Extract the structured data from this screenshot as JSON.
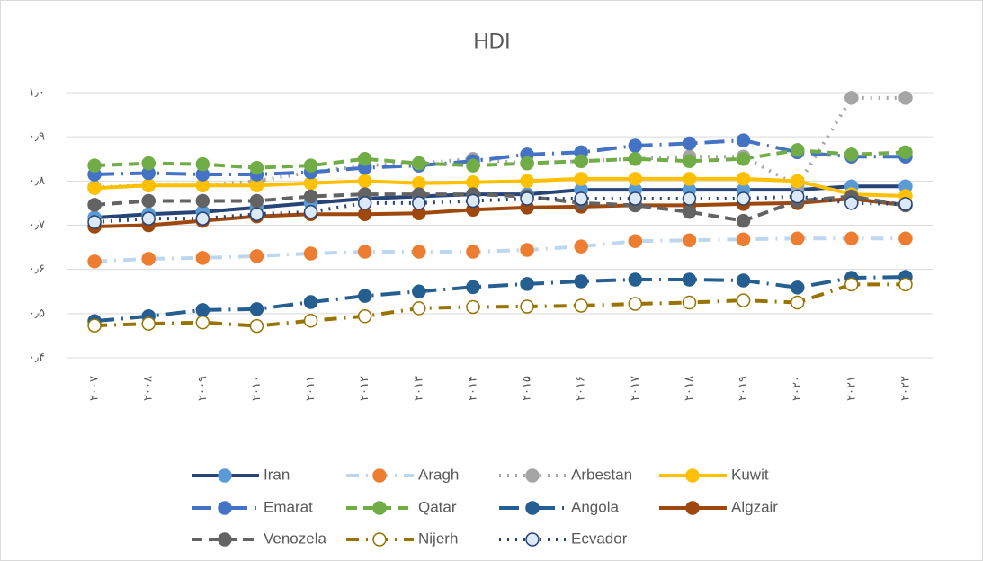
{
  "chart_data": {
    "type": "line",
    "title": "HDI",
    "categories": [
      "۲۰۰۷",
      "۲۰۰۸",
      "۲۰۰۹",
      "۲۰۱۰",
      "۲۰۱۱",
      "۲۰۱۲",
      "۲۰۱۳",
      "۲۰۱۴",
      "۲۰۱۵",
      "۲۰۱۶",
      "۲۰۱۷",
      "۲۰۱۸",
      "۲۰۱۹",
      "۲۰۲۰",
      "۲۰۲۱",
      "۲۰۲۲"
    ],
    "ylim": [
      0.4,
      1.0
    ],
    "yticks": [
      {
        "value": 0.4,
        "label": "۰٫۴"
      },
      {
        "value": 0.5,
        "label": "۰٫۵"
      },
      {
        "value": 0.6,
        "label": "۰٫۶"
      },
      {
        "value": 0.7,
        "label": "۰٫۷"
      },
      {
        "value": 0.8,
        "label": "۰٫۸"
      },
      {
        "value": 0.9,
        "label": "۰٫۹"
      },
      {
        "value": 1.0,
        "label": "۱٫۰"
      }
    ],
    "grid": true,
    "legend": "bottom",
    "series": [
      {
        "name": "Iran",
        "color": "#264478",
        "line_style": "solid",
        "marker_fill": "#5b9bd5",
        "marker_edge": "#5b9bd5",
        "values": [
          0.717,
          0.725,
          0.73,
          0.74,
          0.75,
          0.76,
          0.765,
          0.77,
          0.77,
          0.78,
          0.78,
          0.78,
          0.78,
          0.78,
          0.788,
          0.788
        ]
      },
      {
        "name": "Aragh",
        "color": "#bdd7ee",
        "line_style": "dashdot",
        "marker_fill": "#ed7d31",
        "marker_edge": "#ed7d31",
        "values": [
          0.618,
          0.624,
          0.626,
          0.63,
          0.636,
          0.64,
          0.64,
          0.64,
          0.644,
          0.652,
          0.664,
          0.666,
          0.668,
          0.67,
          0.67,
          0.67
        ]
      },
      {
        "name": "Arbestan",
        "color": "#a5a5a5",
        "line_style": "dot",
        "marker_fill": "#a5a5a5",
        "marker_edge": "#a5a5a5",
        "values": [
          0.786,
          0.79,
          0.79,
          0.8,
          0.82,
          0.835,
          0.84,
          0.85,
          0.84,
          0.845,
          0.85,
          0.855,
          0.855,
          0.79,
          0.988,
          0.988
        ]
      },
      {
        "name": "Kuwit",
        "color": "#ffc000",
        "line_style": "solid",
        "marker_fill": "#ffc000",
        "marker_edge": "#ffc000",
        "values": [
          0.784,
          0.79,
          0.79,
          0.79,
          0.795,
          0.8,
          0.795,
          0.797,
          0.8,
          0.805,
          0.805,
          0.805,
          0.805,
          0.8,
          0.77,
          0.766
        ]
      },
      {
        "name": "Emarat",
        "color": "#4472c4",
        "line_style": "longdashdot",
        "marker_fill": "#4472c4",
        "marker_edge": "#4472c4",
        "values": [
          0.815,
          0.818,
          0.815,
          0.815,
          0.82,
          0.83,
          0.835,
          0.845,
          0.86,
          0.865,
          0.88,
          0.885,
          0.892,
          0.865,
          0.855,
          0.855
        ]
      },
      {
        "name": "Qatar",
        "color": "#70ad47",
        "line_style": "dash",
        "marker_fill": "#70ad47",
        "marker_edge": "#70ad47",
        "values": [
          0.835,
          0.84,
          0.838,
          0.83,
          0.835,
          0.85,
          0.84,
          0.835,
          0.84,
          0.845,
          0.85,
          0.845,
          0.85,
          0.87,
          0.86,
          0.865
        ]
      },
      {
        "name": "Angola",
        "color": "#255e91",
        "line_style": "longdashdot",
        "marker_fill": "#255e91",
        "marker_edge": "#255e91",
        "values": [
          0.483,
          0.494,
          0.508,
          0.51,
          0.526,
          0.54,
          0.55,
          0.56,
          0.567,
          0.573,
          0.577,
          0.577,
          0.575,
          0.559,
          0.581,
          0.583
        ]
      },
      {
        "name": "Algzair",
        "color": "#9e480e",
        "line_style": "solid",
        "marker_fill": "#9e480e",
        "marker_edge": "#9e480e",
        "values": [
          0.697,
          0.7,
          0.71,
          0.72,
          0.725,
          0.725,
          0.727,
          0.735,
          0.74,
          0.742,
          0.745,
          0.745,
          0.748,
          0.75,
          0.76,
          0.745
        ]
      },
      {
        "name": "Venozela",
        "color": "#636363",
        "line_style": "dash",
        "marker_fill": "#636363",
        "marker_edge": "#636363",
        "values": [
          0.746,
          0.755,
          0.755,
          0.755,
          0.765,
          0.77,
          0.77,
          0.77,
          0.765,
          0.75,
          0.745,
          0.73,
          0.71,
          0.755,
          0.765,
          0.745
        ]
      },
      {
        "name": "Nijerh",
        "color": "#997300",
        "line_style": "dashdot",
        "marker_fill": "#ffffff",
        "marker_edge": "#997300",
        "values": [
          0.473,
          0.477,
          0.48,
          0.472,
          0.484,
          0.494,
          0.512,
          0.515,
          0.516,
          0.518,
          0.522,
          0.525,
          0.53,
          0.525,
          0.566,
          0.566
        ]
      },
      {
        "name": "Ecvador",
        "color": "#264478",
        "line_style": "dot",
        "marker_fill": "#dce9f6",
        "marker_edge": "#264478",
        "values": [
          0.707,
          0.715,
          0.715,
          0.725,
          0.73,
          0.75,
          0.75,
          0.755,
          0.76,
          0.76,
          0.76,
          0.76,
          0.76,
          0.765,
          0.75,
          0.748
        ]
      }
    ]
  }
}
